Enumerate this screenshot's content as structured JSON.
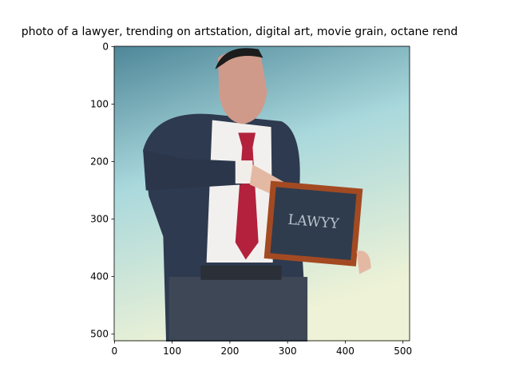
{
  "chart_data": {
    "type": "image",
    "title": "photo of a lawyer,  trending on artstation, digital art, movie grain, octane rend",
    "image_text": "LAWYY",
    "xlim": [
      -0.5,
      511.5
    ],
    "ylim": [
      511.5,
      -0.5
    ],
    "xticks": [
      0,
      100,
      200,
      300,
      400,
      500
    ],
    "yticks": [
      0,
      100,
      200,
      300,
      400,
      500
    ]
  }
}
